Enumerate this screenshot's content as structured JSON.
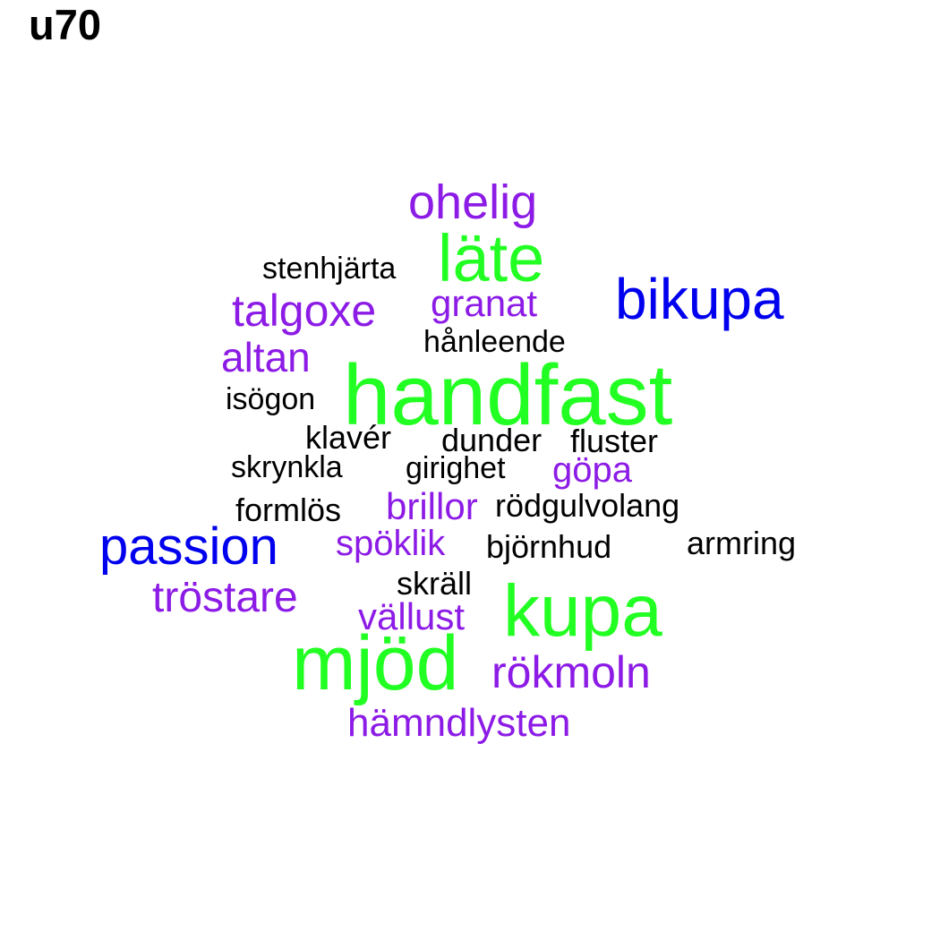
{
  "title": "u70",
  "palette": {
    "green": "#22ff22",
    "blue": "#0000ee",
    "purple": "#8c1be6",
    "black": "#000000"
  },
  "words": [
    {
      "text": "handfast",
      "color": "green"
    },
    {
      "text": "kupa",
      "color": "green"
    },
    {
      "text": "mjöd",
      "color": "green"
    },
    {
      "text": "läte",
      "color": "green"
    },
    {
      "text": "bikupa",
      "color": "blue"
    },
    {
      "text": "passion",
      "color": "blue"
    },
    {
      "text": "ohelig",
      "color": "purple"
    },
    {
      "text": "talgoxe",
      "color": "purple"
    },
    {
      "text": "granat",
      "color": "purple"
    },
    {
      "text": "altan",
      "color": "purple"
    },
    {
      "text": "göpa",
      "color": "purple"
    },
    {
      "text": "brillor",
      "color": "purple"
    },
    {
      "text": "spöklik",
      "color": "purple"
    },
    {
      "text": "tröstare",
      "color": "purple"
    },
    {
      "text": "vällust",
      "color": "purple"
    },
    {
      "text": "rökmoln",
      "color": "purple"
    },
    {
      "text": "hämndlysten",
      "color": "purple"
    },
    {
      "text": "stenhjärta",
      "color": "black"
    },
    {
      "text": "hånleende",
      "color": "black"
    },
    {
      "text": "isögon",
      "color": "black"
    },
    {
      "text": "klavér",
      "color": "black"
    },
    {
      "text": "dunder",
      "color": "black"
    },
    {
      "text": "fluster",
      "color": "black"
    },
    {
      "text": "skrynkla",
      "color": "black"
    },
    {
      "text": "girighet",
      "color": "black"
    },
    {
      "text": "formlös",
      "color": "black"
    },
    {
      "text": "rödgulvolang",
      "color": "black"
    },
    {
      "text": "björnhud",
      "color": "black"
    },
    {
      "text": "armring",
      "color": "black"
    },
    {
      "text": "skräll",
      "color": "black"
    }
  ]
}
